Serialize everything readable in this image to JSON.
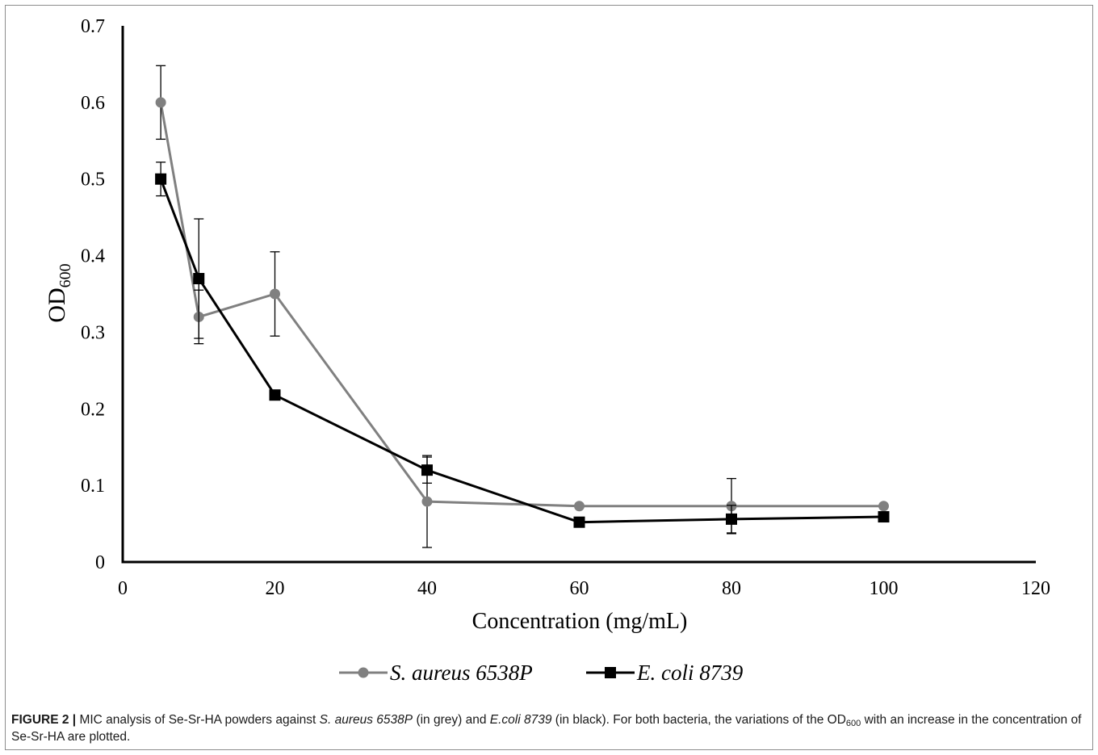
{
  "chart_data": {
    "type": "line",
    "ylabel": "OD",
    "ylabel_sub": "600",
    "xlabel": "Concentration (mg/mL)",
    "xlim": [
      0,
      120
    ],
    "ylim": [
      0,
      0.7
    ],
    "xticks": [
      "0",
      "20",
      "40",
      "60",
      "80",
      "100",
      "120"
    ],
    "yticks": [
      "0",
      "0.1",
      "0.2",
      "0.3",
      "0.4",
      "0.5",
      "0.6",
      "0.7"
    ],
    "grid": false,
    "legend_position": "bottom",
    "series": [
      {
        "name": "S. aureus 6538P",
        "color": "#808080",
        "marker": "circle",
        "x": [
          5,
          10,
          20,
          40,
          60,
          80,
          100
        ],
        "y": [
          0.6,
          0.32,
          0.35,
          0.079,
          0.073,
          0.073,
          0.073
        ],
        "error": [
          0.048,
          0.035,
          0.055,
          0.06,
          0,
          0.036,
          0
        ]
      },
      {
        "name": "E. coli 8739",
        "color": "#000000",
        "marker": "square",
        "x": [
          5,
          10,
          20,
          40,
          60,
          80,
          100
        ],
        "y": [
          0.5,
          0.37,
          0.218,
          0.12,
          0.052,
          0.056,
          0.059
        ],
        "error": [
          0.022,
          0.078,
          0,
          0.017,
          0,
          0.018,
          0
        ]
      }
    ]
  },
  "caption": {
    "label": "FIGURE 2 |",
    "text_1": " MIC analysis of Se-Sr-HA powders against ",
    "species_1": "S. aureus 6538P",
    "text_2": " (in grey) and ",
    "species_2": "E.coli 8739",
    "text_3": " (in black). For both bacteria, the variations of the OD",
    "sub": "600",
    "text_4": " with an increase in the concentration of Se-Sr-HA are plotted."
  }
}
